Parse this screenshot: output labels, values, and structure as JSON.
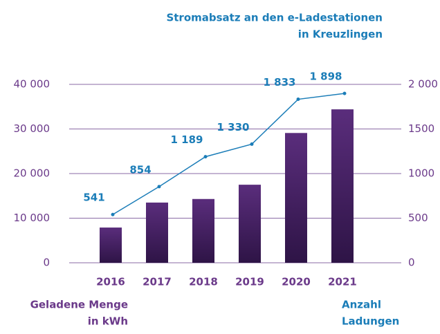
{
  "chart_data": {
    "type": "bar-line",
    "title": [
      "Stromabsatz an den e-Ladestationen",
      "in Kreuzlingen"
    ],
    "categories": [
      "2016",
      "2017",
      "2018",
      "2019",
      "2020",
      "2021"
    ],
    "series": [
      {
        "name": "Geladene Menge in kWh",
        "color": "#4a2368",
        "values": [
          7900,
          13500,
          14300,
          17500,
          29100,
          34400
        ]
      },
      {
        "name": "Anzahl Ladungen",
        "color": "#1b7db8",
        "axis": "y2",
        "values": [
          541,
          854,
          1189,
          1330,
          1833,
          1898
        ],
        "value_labels": [
          "541",
          "854",
          "1 189",
          "1 330",
          "1 833",
          "1 898"
        ]
      }
    ],
    "ylabel": [
      "Geladene Menge",
      "in kWh"
    ],
    "y2label": [
      "Anzahl",
      "Ladungen"
    ],
    "ylim": [
      0,
      40000
    ],
    "yticks": [
      0,
      {
        "value": 10000,
        "label": "10 000"
      },
      {
        "value": 20000,
        "label": "20 000"
      },
      {
        "value": 30000,
        "label": "30 000"
      },
      {
        "value": 40000,
        "label": "40 000"
      }
    ],
    "y2lim": [
      0,
      2000
    ],
    "y2ticks": [
      0,
      500,
      1000,
      1500,
      {
        "value": 2000,
        "label": "2 000"
      }
    ],
    "grid": true
  }
}
